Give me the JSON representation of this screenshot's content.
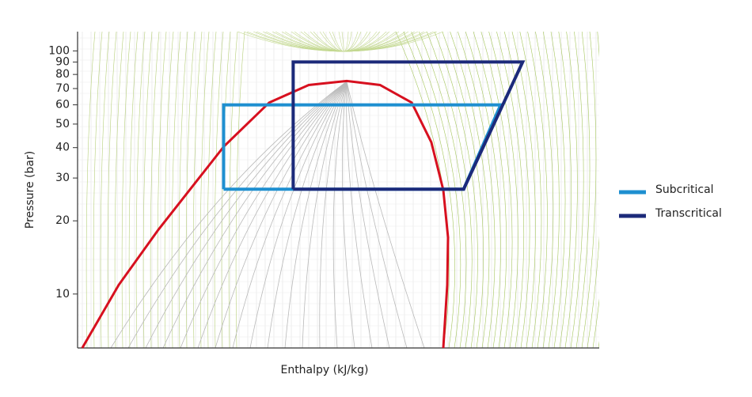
{
  "chart_data": {
    "type": "line",
    "x_label": "Enthalpy (kJ/kg)",
    "y_label": "Pressure (bar)",
    "xlim": [
      100,
      550
    ],
    "ylim": [
      6,
      120
    ],
    "y_log_scale": true,
    "yticks": [
      10,
      20,
      30,
      40,
      50,
      60,
      70,
      80,
      90,
      100
    ],
    "legend_position": "right",
    "saturation_curve": {
      "color": "#d7101f",
      "x": [
        104,
        135.5,
        169.7,
        226.3,
        265.3,
        299.4,
        332.2,
        360.9,
        388.2,
        405.2,
        415.5,
        419.6,
        418.9,
        415.5
      ],
      "values": [
        6,
        10.9,
        18.4,
        40.5,
        61.3,
        72.4,
        75.2,
        72.4,
        61.3,
        42.1,
        26.8,
        17.1,
        10.9,
        6
      ]
    },
    "series": [
      {
        "name": "Subcritical",
        "color": "#1e8fd0",
        "x": [
          226,
          226,
          465,
          433,
          226
        ],
        "values": [
          27,
          60,
          60,
          27,
          27
        ]
      },
      {
        "name": "Transcritical",
        "color": "#1c2a7a",
        "x": [
          286,
          286,
          484,
          433,
          286
        ],
        "values": [
          27,
          90,
          90,
          27,
          27
        ]
      }
    ]
  }
}
